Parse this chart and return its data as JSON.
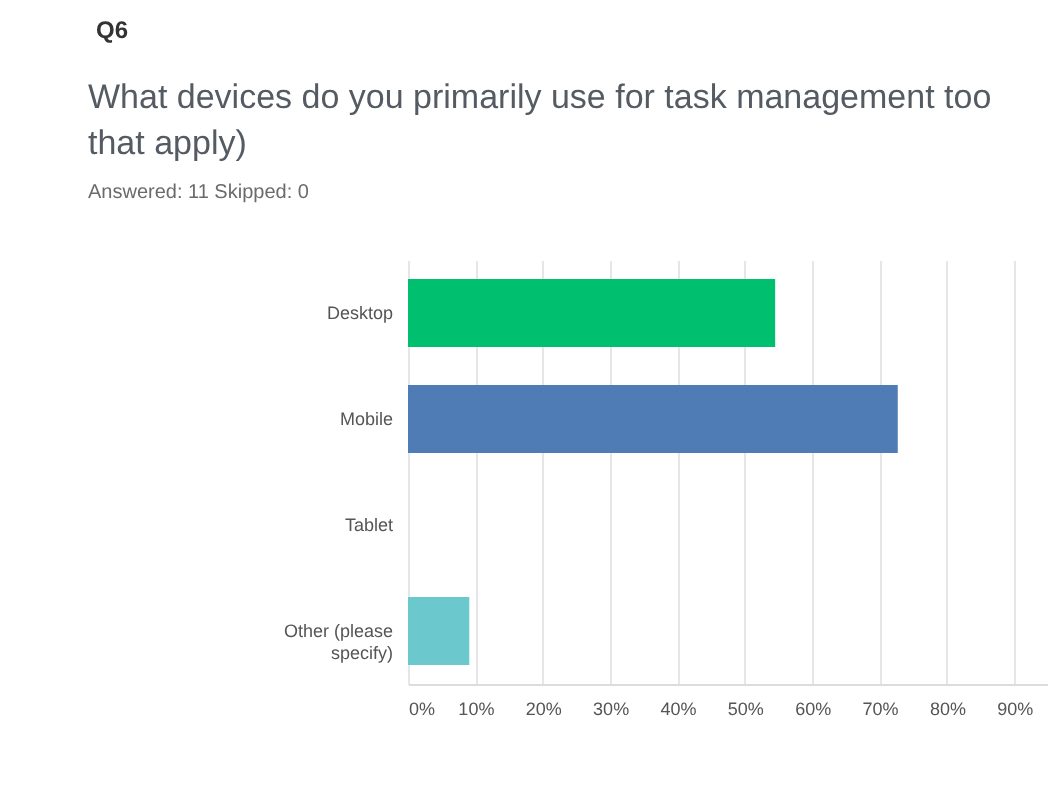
{
  "chart_data": {
    "type": "bar",
    "orientation": "horizontal",
    "title": "What devices do you primarily use for task management too\nthat apply)",
    "subtitle": "Answered: 11    Skipped: 0",
    "annotations": [
      "Q6"
    ],
    "categories": [
      "Desktop",
      "Mobile",
      "Tablet",
      "Other (please specify)"
    ],
    "values": [
      54.5,
      72.7,
      0,
      9.1
    ],
    "colors": [
      "#00bf6f",
      "#507cb6",
      "#f9be00",
      "#6bc8cd"
    ],
    "xlim": [
      0,
      95
    ],
    "xticks": [
      {
        "value": 0,
        "label": "0%"
      },
      {
        "value": 10,
        "label": "10%"
      },
      {
        "value": 20,
        "label": "20%"
      },
      {
        "value": 30,
        "label": "30%"
      },
      {
        "value": 40,
        "label": "40%"
      },
      {
        "value": 50,
        "label": "50%"
      },
      {
        "value": 60,
        "label": "60%"
      },
      {
        "value": 70,
        "label": "70%"
      },
      {
        "value": 80,
        "label": "80%"
      },
      {
        "value": 90,
        "label": "90%"
      }
    ],
    "grid": "x",
    "legend": false
  }
}
